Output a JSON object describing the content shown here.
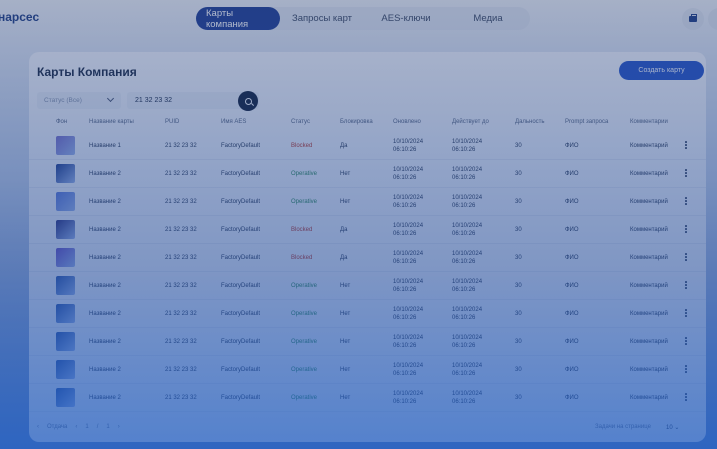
{
  "header": {
    "brand": "нарсес",
    "tabs": [
      {
        "label": "Карты компания",
        "active": true
      },
      {
        "label": "Запросы карт",
        "active": false
      },
      {
        "label": "AES-ключи",
        "active": false
      },
      {
        "label": "Медиа",
        "active": false
      }
    ],
    "right_icons": [
      "briefcase-icon",
      "avatar"
    ]
  },
  "page": {
    "title": "Карты Компания",
    "create_button": "Создать карту"
  },
  "filters": {
    "status_placeholder": "Статус (Все)",
    "search_value": "21 32 23 32"
  },
  "table": {
    "columns": [
      "Фон",
      "Название карты",
      "PUID",
      "Имя AES",
      "Статус",
      "Блокировка",
      "Оновлено",
      "Действует до",
      "Дальность",
      "Prompt запроса",
      "Комментарии"
    ],
    "rows": [
      {
        "name": "Название 1",
        "puid": "21 32 23 32",
        "aes": "FactoryDefault",
        "status": "Blocked",
        "block": "Да",
        "updated_date": "10/10/2024",
        "updated_time": "06:10:26",
        "valid_date": "10/10/2024",
        "valid_time": "06:10:26",
        "range": "30",
        "prompt": "ФИО",
        "comment": "Комментарий",
        "thumb": "#7a6fc9"
      },
      {
        "name": "Название 2",
        "puid": "21 32 23 32",
        "aes": "FactoryDefault",
        "status": "Operative",
        "block": "Нет",
        "updated_date": "10/10/2024",
        "updated_time": "06:10:26",
        "valid_date": "10/10/2024",
        "valid_time": "06:10:26",
        "range": "30",
        "prompt": "ФИО",
        "comment": "Комментарий",
        "thumb": "#1e3c8a"
      },
      {
        "name": "Название 2",
        "puid": "21 32 23 32",
        "aes": "FactoryDefault",
        "status": "Operative",
        "block": "Нет",
        "updated_date": "10/10/2024",
        "updated_time": "06:10:26",
        "valid_date": "10/10/2024",
        "valid_time": "06:10:26",
        "range": "30",
        "prompt": "ФИО",
        "comment": "Комментарий",
        "thumb": "#5a78d8"
      },
      {
        "name": "Название 2",
        "puid": "21 32 23 32",
        "aes": "FactoryDefault",
        "status": "Blocked",
        "block": "Да",
        "updated_date": "10/10/2024",
        "updated_time": "06:10:26",
        "valid_date": "10/10/2024",
        "valid_time": "06:10:26",
        "range": "30",
        "prompt": "ФИО",
        "comment": "Комментарий",
        "thumb": "#2a2f7a"
      },
      {
        "name": "Название 2",
        "puid": "21 32 23 32",
        "aes": "FactoryDefault",
        "status": "Blocked",
        "block": "Да",
        "updated_date": "10/10/2024",
        "updated_time": "06:10:26",
        "valid_date": "10/10/2024",
        "valid_time": "06:10:26",
        "range": "30",
        "prompt": "ФИО",
        "comment": "Комментарий",
        "thumb": "#6a4fc2"
      },
      {
        "name": "Название 2",
        "puid": "21 32 23 32",
        "aes": "FactoryDefault",
        "status": "Operative",
        "block": "Нет",
        "updated_date": "10/10/2024",
        "updated_time": "06:10:26",
        "valid_date": "10/10/2024",
        "valid_time": "06:10:26",
        "range": "30",
        "prompt": "ФИО",
        "comment": "Комментарий",
        "thumb": "#2b55a8"
      },
      {
        "name": "Название 2",
        "puid": "21 32 23 32",
        "aes": "FactoryDefault",
        "status": "Operative",
        "block": "Нет",
        "updated_date": "10/10/2024",
        "updated_time": "06:10:26",
        "valid_date": "10/10/2024",
        "valid_time": "06:10:26",
        "range": "30",
        "prompt": "ФИО",
        "comment": "Комментарий",
        "thumb": "#2b55a8"
      },
      {
        "name": "Название 2",
        "puid": "21 32 23 32",
        "aes": "FactoryDefault",
        "status": "Operative",
        "block": "Нет",
        "updated_date": "10/10/2024",
        "updated_time": "06:10:26",
        "valid_date": "10/10/2024",
        "valid_time": "06:10:26",
        "range": "30",
        "prompt": "ФИО",
        "comment": "Комментарий",
        "thumb": "#2b55a8"
      },
      {
        "name": "Название 2",
        "puid": "21 32 23 32",
        "aes": "FactoryDefault",
        "status": "Operative",
        "block": "Нет",
        "updated_date": "10/10/2024",
        "updated_time": "06:10:26",
        "valid_date": "10/10/2024",
        "valid_time": "06:10:26",
        "range": "30",
        "prompt": "ФИО",
        "comment": "Комментарий",
        "thumb": "#2b55a8"
      },
      {
        "name": "Название 2",
        "puid": "21 32 23 32",
        "aes": "FactoryDefault",
        "status": "Operative",
        "block": "Нет",
        "updated_date": "10/10/2024",
        "updated_time": "06:10:26",
        "valid_date": "10/10/2024",
        "valid_time": "06:10:26",
        "range": "30",
        "prompt": "ФИО",
        "comment": "Комментарий",
        "thumb": "#2b55a8"
      }
    ]
  },
  "footer": {
    "prev": "Отдача",
    "page_current": "1",
    "page_sep": "/",
    "page_total": "1",
    "per_page_label": "Задачи на странице",
    "per_page_value": "10"
  },
  "colors": {
    "accent": "#2555c9",
    "nav_active": "#1f3f96",
    "status_blocked": "#c0392b",
    "status_operative": "#2e8b57"
  }
}
